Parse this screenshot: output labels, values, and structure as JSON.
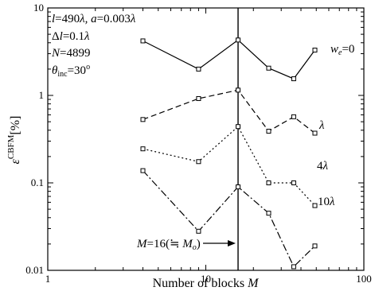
{
  "chart_data": {
    "type": "line",
    "x_scale": "log",
    "y_scale": "log",
    "xlim": [
      1,
      100
    ],
    "ylim": [
      0.01,
      10
    ],
    "xlabel": "Number of blocks M",
    "ylabel": "ε^CBFM [%]",
    "x_ticks": [
      "1",
      "10",
      "100"
    ],
    "y_ticks": [
      "0.01",
      "0.1",
      "1",
      "10"
    ],
    "grid": false,
    "legend": "none",
    "params": {
      "line1": "l=490λ, a=0.003λ",
      "line2": "Δl=0.1λ",
      "line3": "N=4899",
      "line4": "θinc=30°"
    },
    "vertical_line": {
      "x": 16,
      "label": "M=16(≒ Mo)"
    },
    "series": [
      {
        "name": "we=0",
        "style": "solid",
        "x": [
          4,
          9,
          16,
          25,
          36,
          49
        ],
        "y": [
          4.2,
          2.0,
          4.3,
          2.05,
          1.55,
          3.3
        ]
      },
      {
        "name": "λ",
        "style": "dashed",
        "x": [
          4,
          9,
          16,
          25,
          36,
          49
        ],
        "y": [
          0.53,
          0.92,
          1.15,
          0.39,
          0.57,
          0.37
        ]
      },
      {
        "name": "4λ",
        "style": "dotted",
        "x": [
          4,
          9,
          16,
          25,
          36,
          49
        ],
        "y": [
          0.245,
          0.175,
          0.44,
          0.1,
          0.1,
          0.055
        ]
      },
      {
        "name": "10λ",
        "style": "dashdot",
        "x": [
          4,
          9,
          16,
          25,
          36,
          49
        ],
        "y": [
          0.138,
          0.028,
          0.09,
          0.045,
          0.011,
          0.019
        ]
      }
    ]
  }
}
